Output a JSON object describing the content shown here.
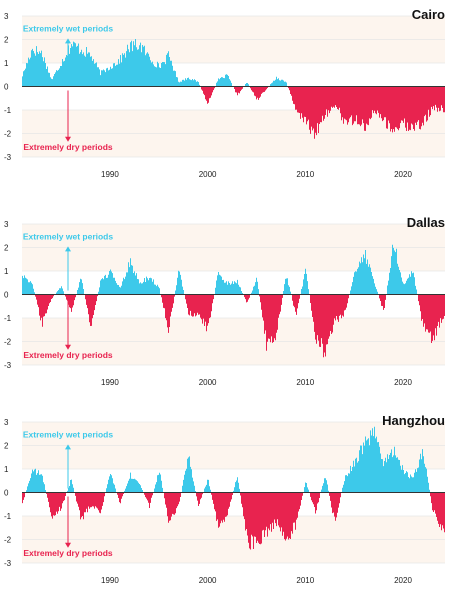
{
  "colors": {
    "wet": "#3dc9ea",
    "dry": "#e8234f",
    "band": "#fdf5ee",
    "grid": "#e6e6e6"
  },
  "chart_data": [
    {
      "type": "area",
      "title": "Cairo",
      "xlim": [
        1981,
        2024.3
      ],
      "ylim": [
        -3,
        3
      ],
      "x_ticks": [
        1990,
        2000,
        2010,
        2020
      ],
      "y_ticks": [
        3,
        2,
        1,
        0,
        -1,
        -2,
        -3
      ],
      "annotations": {
        "wet": "Extremely wet periods",
        "dry": "Extremely dry periods"
      },
      "series": [
        {
          "x": [
            1981,
            1982,
            1983,
            1984,
            1985,
            1986,
            1987,
            1988,
            1989,
            1990,
            1991,
            1992,
            1993,
            1994,
            1995,
            1996,
            1997,
            1998,
            1999,
            2000,
            2001,
            2002,
            2003,
            2004,
            2005,
            2006,
            2007,
            2008,
            2009,
            2010,
            2011,
            2012,
            2013,
            2014,
            2015,
            2016,
            2017,
            2018,
            2019,
            2020,
            2021,
            2022,
            2023,
            2024
          ],
          "y": [
            0.5,
            1.7,
            1.5,
            0.3,
            1.1,
            1.9,
            1.7,
            1.4,
            0.6,
            0.9,
            1.2,
            1.8,
            1.9,
            1.3,
            0.9,
            1.4,
            0.2,
            0.4,
            0.2,
            -0.8,
            0.3,
            0.5,
            -0.4,
            0.2,
            -0.6,
            -0.1,
            0.4,
            0.2,
            -1.0,
            -1.6,
            -2.1,
            -1.3,
            -0.8,
            -1.6,
            -1.5,
            -1.8,
            -1.1,
            -1.5,
            -2.0,
            -1.7,
            -1.9,
            -1.6,
            -1.0,
            -1.0
          ]
        }
      ]
    },
    {
      "type": "area",
      "title": "Dallas",
      "xlim": [
        1981,
        2024.3
      ],
      "ylim": [
        -3,
        3
      ],
      "x_ticks": [
        1990,
        2000,
        2010,
        2020
      ],
      "y_ticks": [
        3,
        2,
        1,
        0,
        -1,
        -2,
        -3
      ],
      "annotations": {
        "wet": "Extremely wet periods",
        "dry": "Extremely dry periods"
      },
      "series": [
        {
          "x": [
            1981,
            1982,
            1983,
            1984,
            1985,
            1986,
            1987,
            1988,
            1989,
            1990,
            1991,
            1992,
            1993,
            1994,
            1995,
            1996,
            1997,
            1998,
            1999,
            2000,
            2001,
            2002,
            2003,
            2004,
            2005,
            2006,
            2007,
            2008,
            2009,
            2010,
            2011,
            2012,
            2013,
            2014,
            2015,
            2016,
            2017,
            2018,
            2019,
            2020,
            2021,
            2022,
            2023,
            2024
          ],
          "y": [
            0.9,
            0.5,
            -1.3,
            -0.2,
            0.4,
            -0.8,
            0.8,
            -1.5,
            0.6,
            1.0,
            0.3,
            1.5,
            0.5,
            0.8,
            0.3,
            -1.6,
            1.1,
            -0.8,
            -1.0,
            -1.6,
            0.9,
            0.5,
            0.6,
            -0.4,
            0.7,
            -2.3,
            -1.8,
            0.9,
            -0.9,
            1.1,
            -2.0,
            -2.6,
            -1.2,
            -0.8,
            0.9,
            1.9,
            0.6,
            -0.8,
            2.4,
            0.5,
            1.0,
            -1.4,
            -2.0,
            -1.0
          ]
        }
      ]
    },
    {
      "type": "area",
      "title": "Hangzhou",
      "xlim": [
        1981,
        2024.3
      ],
      "ylim": [
        -3,
        3
      ],
      "x_ticks": [
        1990,
        2000,
        2010,
        2020
      ],
      "y_ticks": [
        3,
        2,
        1,
        0,
        -1,
        -2,
        -3
      ],
      "annotations": {
        "wet": "Extremely wet periods",
        "dry": "Extremely dry periods"
      },
      "series": [
        {
          "x": [
            1981,
            1982,
            1983,
            1984,
            1985,
            1986,
            1987,
            1988,
            1989,
            1990,
            1991,
            1992,
            1993,
            1994,
            1995,
            1996,
            1997,
            1998,
            1999,
            2000,
            2001,
            2002,
            2003,
            2004,
            2005,
            2006,
            2007,
            2008,
            2009,
            2010,
            2011,
            2012,
            2013,
            2014,
            2015,
            2016,
            2017,
            2018,
            2019,
            2020,
            2021,
            2022,
            2023,
            2024
          ],
          "y": [
            -0.5,
            1.0,
            0.8,
            -1.1,
            -0.7,
            0.6,
            -1.2,
            -0.6,
            -0.9,
            0.9,
            -0.5,
            0.8,
            0.4,
            -0.6,
            1.0,
            -1.3,
            -0.6,
            1.7,
            -0.6,
            0.6,
            -1.4,
            -1.0,
            0.8,
            -2.2,
            -2.4,
            -1.8,
            -1.3,
            -2.2,
            -1.4,
            0.5,
            -0.9,
            0.8,
            -1.4,
            0.7,
            1.3,
            2.2,
            2.6,
            1.3,
            2.0,
            1.0,
            0.6,
            1.9,
            -0.8,
            -1.6
          ]
        }
      ]
    }
  ]
}
